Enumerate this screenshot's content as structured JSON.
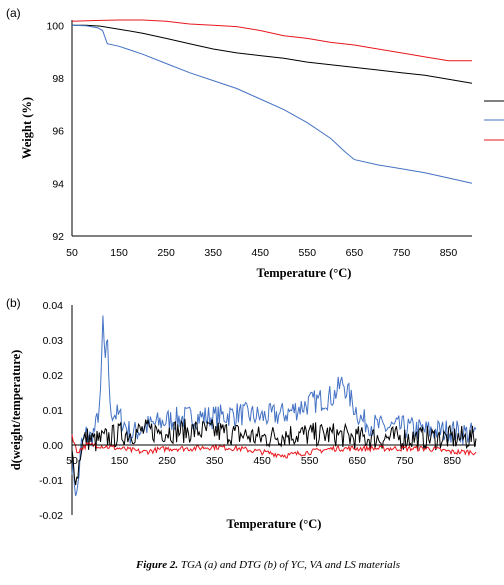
{
  "chart_data": [
    {
      "panel": "(a)",
      "type": "line",
      "xlabel": "Temperature (°C)",
      "ylabel": "Weight (%)",
      "xlim": [
        50,
        900
      ],
      "ylim": [
        92,
        100.2
      ],
      "x_ticks": [
        50,
        150,
        250,
        350,
        450,
        550,
        650,
        750,
        850
      ],
      "y_ticks": [
        92,
        94,
        96,
        98,
        100
      ],
      "grid": false,
      "legend": "right (unlabeled entries)",
      "series": [
        {
          "color": "#000000",
          "x": [
            50,
            80,
            110,
            150,
            200,
            250,
            300,
            350,
            400,
            450,
            500,
            550,
            600,
            650,
            700,
            750,
            800,
            850,
            900
          ],
          "y": [
            100,
            100,
            99.97,
            99.85,
            99.7,
            99.5,
            99.3,
            99.1,
            98.95,
            98.85,
            98.75,
            98.6,
            98.5,
            98.4,
            98.3,
            98.2,
            98.1,
            97.95,
            97.8
          ]
        },
        {
          "color": "#4472c4",
          "x": [
            50,
            80,
            105,
            115,
            125,
            150,
            200,
            250,
            300,
            350,
            400,
            450,
            500,
            550,
            600,
            630,
            650,
            700,
            750,
            800,
            850,
            900
          ],
          "y": [
            100,
            99.98,
            99.9,
            99.8,
            99.3,
            99.2,
            98.9,
            98.55,
            98.2,
            97.9,
            97.6,
            97.2,
            96.8,
            96.3,
            95.7,
            95.2,
            94.9,
            94.7,
            94.55,
            94.4,
            94.2,
            94.0
          ]
        },
        {
          "color": "#e8171d",
          "x": [
            50,
            100,
            150,
            200,
            250,
            300,
            350,
            400,
            450,
            500,
            550,
            600,
            650,
            700,
            750,
            800,
            850,
            900
          ],
          "y": [
            100.15,
            100.18,
            100.2,
            100.2,
            100.15,
            100.05,
            100.0,
            99.95,
            99.8,
            99.6,
            99.5,
            99.35,
            99.25,
            99.1,
            98.95,
            98.8,
            98.65,
            98.65
          ]
        }
      ]
    },
    {
      "panel": "(b)",
      "type": "line",
      "xlabel": "Temperature (°C)",
      "ylabel": "d(weight/temperature)",
      "xlim": [
        50,
        900
      ],
      "ylim": [
        -0.02,
        0.04
      ],
      "x_ticks": [
        50,
        150,
        250,
        350,
        450,
        550,
        650,
        750,
        850
      ],
      "y_ticks": [
        "0.04",
        "0.03",
        "0.02",
        "0.01",
        "0.00",
        "-0.01",
        "-0.02"
      ],
      "y_tick_values": [
        0.04,
        0.03,
        0.02,
        0.01,
        0.0,
        -0.01,
        -0.02
      ],
      "grid": false,
      "series": [
        {
          "color": "#4472c4",
          "x": [
            50,
            60,
            70,
            80,
            90,
            100,
            110,
            115,
            120,
            125,
            130,
            150,
            175,
            200,
            250,
            300,
            350,
            400,
            450,
            500,
            550,
            600,
            620,
            640,
            660,
            700,
            750,
            800,
            850,
            900
          ],
          "y": [
            -0.005,
            -0.015,
            0.0,
            0.003,
            0.002,
            0.005,
            0.013,
            0.036,
            0.022,
            0.031,
            0.01,
            0.008,
            0.003,
            0.005,
            0.007,
            0.008,
            0.008,
            0.009,
            0.008,
            0.009,
            0.012,
            0.014,
            0.018,
            0.012,
            0.007,
            0.005,
            0.005,
            0.004,
            0.004,
            0.003
          ]
        },
        {
          "color": "#000000",
          "x": [
            50,
            60,
            70,
            80,
            100,
            150,
            200,
            250,
            300,
            350,
            400,
            450,
            500,
            550,
            600,
            650,
            700,
            750,
            800,
            850,
            900
          ],
          "y": [
            -0.003,
            -0.01,
            0.0,
            0.002,
            0.001,
            0.003,
            0.004,
            0.004,
            0.004,
            0.004,
            0.003,
            0.002,
            0.003,
            0.003,
            0.003,
            0.002,
            0.002,
            0.002,
            0.002,
            0.002,
            0.002
          ]
        },
        {
          "color": "#e8171d",
          "x": [
            50,
            60,
            80,
            100,
            150,
            200,
            250,
            300,
            350,
            400,
            450,
            500,
            550,
            600,
            650,
            700,
            750,
            800,
            850,
            900
          ],
          "y": [
            0.003,
            -0.002,
            0.0,
            0.0,
            -0.001,
            -0.002,
            -0.001,
            -0.001,
            -0.0005,
            -0.001,
            -0.002,
            -0.003,
            -0.002,
            -0.001,
            -0.001,
            -0.001,
            -0.001,
            -0.001,
            -0.002,
            -0.002
          ]
        }
      ]
    }
  ],
  "caption": {
    "bold": "Figure 2.",
    "rest": " TGA (a) and DTG (b) of YC, VA and LS materials"
  }
}
